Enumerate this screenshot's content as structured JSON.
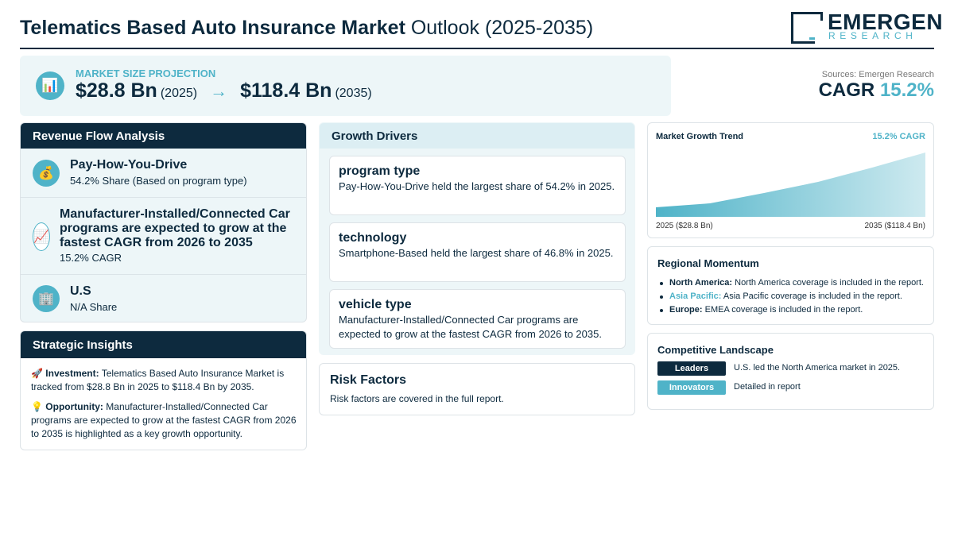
{
  "header": {
    "title_bold": "Telematics Based Auto Insurance Market",
    "title_rest": " Outlook (2025-2035)",
    "logo_name": "EMERGEN",
    "logo_sub": "RESEARCH"
  },
  "projection": {
    "icon": "bar-chart-icon",
    "label": "MARKET SIZE PROJECTION",
    "start_value": "$28.8 Bn",
    "start_year": "(2025)",
    "arrow": "→",
    "end_value": "$118.4 Bn",
    "end_year": "(2035)"
  },
  "summary": {
    "sources": "Sources: Emergen Research",
    "cagr_label": "CAGR ",
    "cagr_value": "15.2%"
  },
  "revenue_flow": {
    "heading": "Revenue Flow Analysis",
    "items": [
      {
        "icon": "money-bag-icon",
        "title": "Pay-How-You-Drive",
        "sub": "54.2% Share (Based on program type)"
      },
      {
        "icon": "chart-increasing-icon",
        "title": "Manufacturer-Installed/Connected Car programs are expected to grow at the fastest CAGR from 2026 to 2035",
        "sub": "15.2% CAGR"
      },
      {
        "icon": "office-building-icon",
        "title": "U.S",
        "sub": "N/A Share"
      }
    ]
  },
  "strategic": {
    "heading": "Strategic Insights",
    "investment_label": "Investment:",
    "investment_text": " Telematics Based Auto Insurance Market is tracked from $28.8 Bn in 2025 to $118.4 Bn by 2035.",
    "opportunity_label": "Opportunity:",
    "opportunity_text": " Manufacturer-Installed/Connected Car programs are expected to grow at the fastest CAGR from 2026 to 2035 is highlighted as a key growth opportunity."
  },
  "growth_drivers": {
    "heading": "Growth Drivers",
    "items": [
      {
        "title": "program type",
        "text": "Pay-How-You-Drive held the largest share of 54.2% in 2025."
      },
      {
        "title": "technology",
        "text": "Smartphone-Based held the largest share of 46.8% in 2025."
      },
      {
        "title": "vehicle type",
        "text": "Manufacturer-Installed/Connected Car programs are expected to grow at the fastest CAGR from 2026 to 2035."
      }
    ]
  },
  "risk": {
    "title": "Risk Factors",
    "text": "Risk factors are covered in the full report."
  },
  "trend": {
    "title": "Market Growth Trend",
    "cagr": "15.2% CAGR",
    "start_label": "2025 ($28.8 Bn)",
    "end_label": "2035 ($118.4 Bn)",
    "accent": "#4fb3c8"
  },
  "regional": {
    "title": "Regional Momentum",
    "items": [
      {
        "name": "North America:",
        "text": " North America coverage is included in the report."
      },
      {
        "name": "Asia Pacific:",
        "text": " Asia Pacific coverage is included in the report."
      },
      {
        "name": "Europe:",
        "text": " EMEA coverage is included in the report."
      }
    ]
  },
  "competitive": {
    "title": "Competitive Landscape",
    "rows": [
      {
        "badge": "Leaders",
        "text": "U.S. led the North America market in 2025.",
        "color": "#0d2a3e"
      },
      {
        "badge": "Innovators",
        "text": "Detailed in report",
        "color": "#4fb3c8"
      }
    ]
  }
}
